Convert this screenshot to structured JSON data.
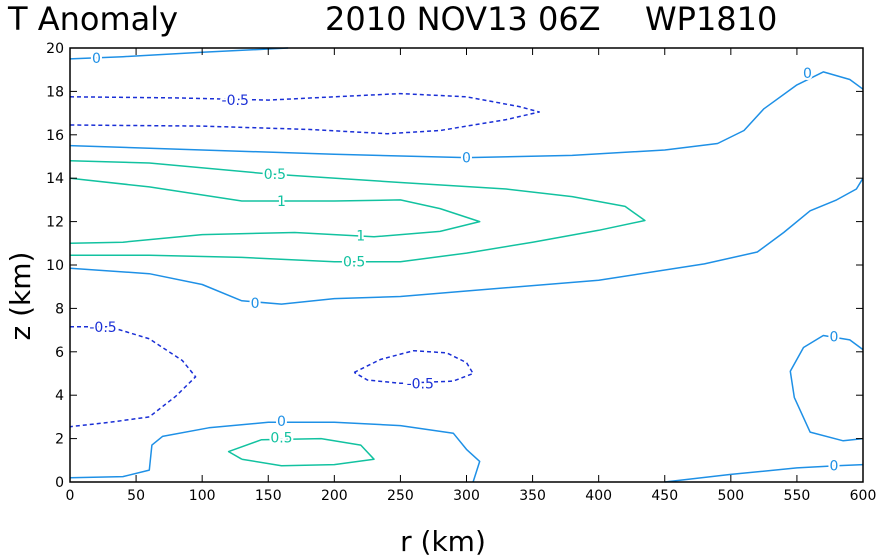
{
  "chart_data": {
    "type": "contour",
    "title": "T Anomaly",
    "date": "2010 NOV13 06Z",
    "storm_id": "WP1810",
    "xlabel": "r (km)",
    "ylabel": "z (km)",
    "xlim": [
      0,
      600
    ],
    "ylim": [
      0,
      20
    ],
    "xticks": [
      0,
      50,
      100,
      150,
      200,
      250,
      300,
      350,
      400,
      450,
      500,
      550,
      600
    ],
    "yticks": [
      0,
      2,
      4,
      6,
      8,
      10,
      12,
      14,
      16,
      18,
      20
    ],
    "colors": {
      "zero": "#1e90e6",
      "negative": "#1a2fd6",
      "positive": "#12c2a0"
    },
    "contours": [
      {
        "level": "0",
        "kind": "zero",
        "dashed": false,
        "points": [
          [
            0,
            19.5
          ],
          [
            40,
            19.6
          ],
          [
            100,
            19.8
          ],
          [
            165,
            20
          ]
        ]
      },
      {
        "level": "-0.5",
        "kind": "negative",
        "dashed": true,
        "points": [
          [
            0,
            17.75
          ],
          [
            80,
            17.7
          ],
          [
            150,
            17.6
          ],
          [
            200,
            17.75
          ],
          [
            250,
            17.9
          ],
          [
            300,
            17.75
          ],
          [
            340,
            17.3
          ],
          [
            355,
            17.05
          ],
          [
            330,
            16.7
          ],
          [
            280,
            16.2
          ],
          [
            240,
            16.05
          ],
          [
            180,
            16.25
          ],
          [
            100,
            16.4
          ],
          [
            0,
            16.45
          ]
        ]
      },
      {
        "level": "0",
        "kind": "zero",
        "dashed": false,
        "points": [
          [
            0,
            15.5
          ],
          [
            100,
            15.3
          ],
          [
            200,
            15.1
          ],
          [
            300,
            14.95
          ],
          [
            380,
            15.05
          ],
          [
            450,
            15.3
          ],
          [
            490,
            15.6
          ],
          [
            510,
            16.2
          ],
          [
            525,
            17.2
          ],
          [
            550,
            18.3
          ],
          [
            570,
            18.9
          ],
          [
            590,
            18.55
          ],
          [
            600,
            18.1
          ]
        ]
      },
      {
        "level": "0.5",
        "kind": "positive",
        "dashed": false,
        "points": [
          [
            0,
            14.8
          ],
          [
            60,
            14.7
          ],
          [
            150,
            14.2
          ],
          [
            250,
            13.8
          ],
          [
            330,
            13.5
          ],
          [
            380,
            13.15
          ],
          [
            420,
            12.7
          ],
          [
            435,
            12.05
          ],
          [
            400,
            11.6
          ],
          [
            350,
            11.05
          ],
          [
            300,
            10.55
          ],
          [
            250,
            10.15
          ],
          [
            200,
            10.15
          ],
          [
            130,
            10.35
          ],
          [
            60,
            10.45
          ],
          [
            0,
            10.45
          ]
        ]
      },
      {
        "level": "1",
        "kind": "positive",
        "dashed": false,
        "points": [
          [
            0,
            14.0
          ],
          [
            60,
            13.6
          ],
          [
            130,
            12.95
          ],
          [
            200,
            12.95
          ],
          [
            250,
            13.0
          ],
          [
            280,
            12.6
          ],
          [
            310,
            12.0
          ],
          [
            280,
            11.55
          ],
          [
            230,
            11.3
          ],
          [
            170,
            11.5
          ],
          [
            100,
            11.4
          ],
          [
            40,
            11.05
          ],
          [
            0,
            11.0
          ]
        ]
      },
      {
        "level": "0",
        "kind": "zero",
        "dashed": false,
        "points": [
          [
            0,
            9.85
          ],
          [
            60,
            9.6
          ],
          [
            100,
            9.1
          ],
          [
            130,
            8.35
          ],
          [
            160,
            8.2
          ],
          [
            200,
            8.45
          ],
          [
            250,
            8.55
          ],
          [
            300,
            8.8
          ],
          [
            400,
            9.3
          ],
          [
            480,
            10.05
          ],
          [
            520,
            10.6
          ],
          [
            540,
            11.5
          ],
          [
            560,
            12.5
          ],
          [
            580,
            13.0
          ],
          [
            595,
            13.5
          ],
          [
            600,
            14.0
          ]
        ]
      },
      {
        "level": "-0.5",
        "kind": "negative",
        "dashed": true,
        "points": [
          [
            0,
            7.15
          ],
          [
            30,
            7.15
          ],
          [
            60,
            6.6
          ],
          [
            85,
            5.6
          ],
          [
            95,
            4.85
          ],
          [
            80,
            3.95
          ],
          [
            60,
            3.0
          ],
          [
            30,
            2.75
          ],
          [
            0,
            2.55
          ]
        ]
      },
      {
        "level": "-0.5",
        "kind": "negative",
        "dashed": true,
        "points": [
          [
            215,
            5.05
          ],
          [
            235,
            5.65
          ],
          [
            260,
            6.05
          ],
          [
            285,
            5.95
          ],
          [
            300,
            5.5
          ],
          [
            305,
            5.0
          ],
          [
            290,
            4.65
          ],
          [
            250,
            4.55
          ],
          [
            225,
            4.7
          ],
          [
            215,
            5.05
          ]
        ]
      },
      {
        "level": "0",
        "kind": "zero",
        "dashed": false,
        "points": [
          [
            600,
            6.1
          ],
          [
            590,
            6.55
          ],
          [
            570,
            6.75
          ],
          [
            555,
            6.2
          ],
          [
            545,
            5.1
          ],
          [
            548,
            3.9
          ],
          [
            560,
            2.3
          ],
          [
            585,
            1.9
          ],
          [
            600,
            2.0
          ]
        ]
      },
      {
        "level": "0",
        "kind": "zero",
        "dashed": false,
        "points": [
          [
            0,
            0.2
          ],
          [
            40,
            0.25
          ],
          [
            60,
            0.55
          ],
          [
            62,
            1.7
          ],
          [
            70,
            2.1
          ],
          [
            105,
            2.5
          ],
          [
            150,
            2.75
          ],
          [
            200,
            2.75
          ],
          [
            250,
            2.6
          ],
          [
            290,
            2.25
          ],
          [
            300,
            1.5
          ],
          [
            310,
            0.95
          ],
          [
            305,
            0
          ]
        ]
      },
      {
        "level": "0.5",
        "kind": "positive",
        "dashed": false,
        "points": [
          [
            130,
            1.05
          ],
          [
            120,
            1.4
          ],
          [
            145,
            1.95
          ],
          [
            190,
            2.0
          ],
          [
            220,
            1.7
          ],
          [
            230,
            1.05
          ],
          [
            200,
            0.8
          ],
          [
            160,
            0.75
          ],
          [
            130,
            1.05
          ]
        ]
      },
      {
        "level": "0",
        "kind": "zero",
        "dashed": false,
        "points": [
          [
            450,
            0
          ],
          [
            500,
            0.35
          ],
          [
            550,
            0.65
          ],
          [
            580,
            0.75
          ],
          [
            600,
            0.8
          ]
        ]
      }
    ],
    "contour_labels": [
      {
        "text": "0",
        "kind": "zero",
        "x": 20,
        "y": 19.55
      },
      {
        "text": "-0.5",
        "kind": "negative",
        "x": 125,
        "y": 17.6
      },
      {
        "text": "0",
        "kind": "zero",
        "x": 300,
        "y": 14.95
      },
      {
        "text": "0",
        "kind": "zero",
        "x": 558,
        "y": 18.85
      },
      {
        "text": "0.5",
        "kind": "positive",
        "x": 155,
        "y": 14.2
      },
      {
        "text": "1",
        "kind": "positive",
        "x": 160,
        "y": 12.95
      },
      {
        "text": "1",
        "kind": "positive",
        "x": 220,
        "y": 11.35
      },
      {
        "text": "0.5",
        "kind": "positive",
        "x": 215,
        "y": 10.15
      },
      {
        "text": "0",
        "kind": "zero",
        "x": 140,
        "y": 8.25
      },
      {
        "text": "-0.5",
        "kind": "negative",
        "x": 25,
        "y": 7.15
      },
      {
        "text": "-0.5",
        "kind": "negative",
        "x": 265,
        "y": 4.55
      },
      {
        "text": "0",
        "kind": "zero",
        "x": 578,
        "y": 6.7
      },
      {
        "text": "0",
        "kind": "zero",
        "x": 160,
        "y": 2.8
      },
      {
        "text": "0.5",
        "kind": "positive",
        "x": 160,
        "y": 2.05
      },
      {
        "text": "0",
        "kind": "zero",
        "x": 578,
        "y": 0.75
      }
    ]
  }
}
